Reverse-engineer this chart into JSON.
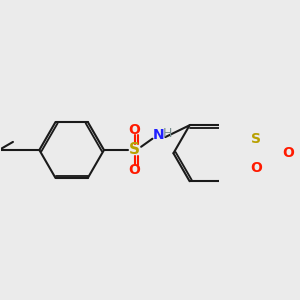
{
  "background_color": "#ebebeb",
  "bond_color": "#1a1a1a",
  "bond_width": 1.5,
  "atom_colors": {
    "S": "#b8a000",
    "O": "#ff1a00",
    "N": "#2020ff",
    "H": "#7a9090",
    "C": "#1a1a1a"
  },
  "figsize": [
    3.0,
    3.0
  ],
  "dpi": 100
}
